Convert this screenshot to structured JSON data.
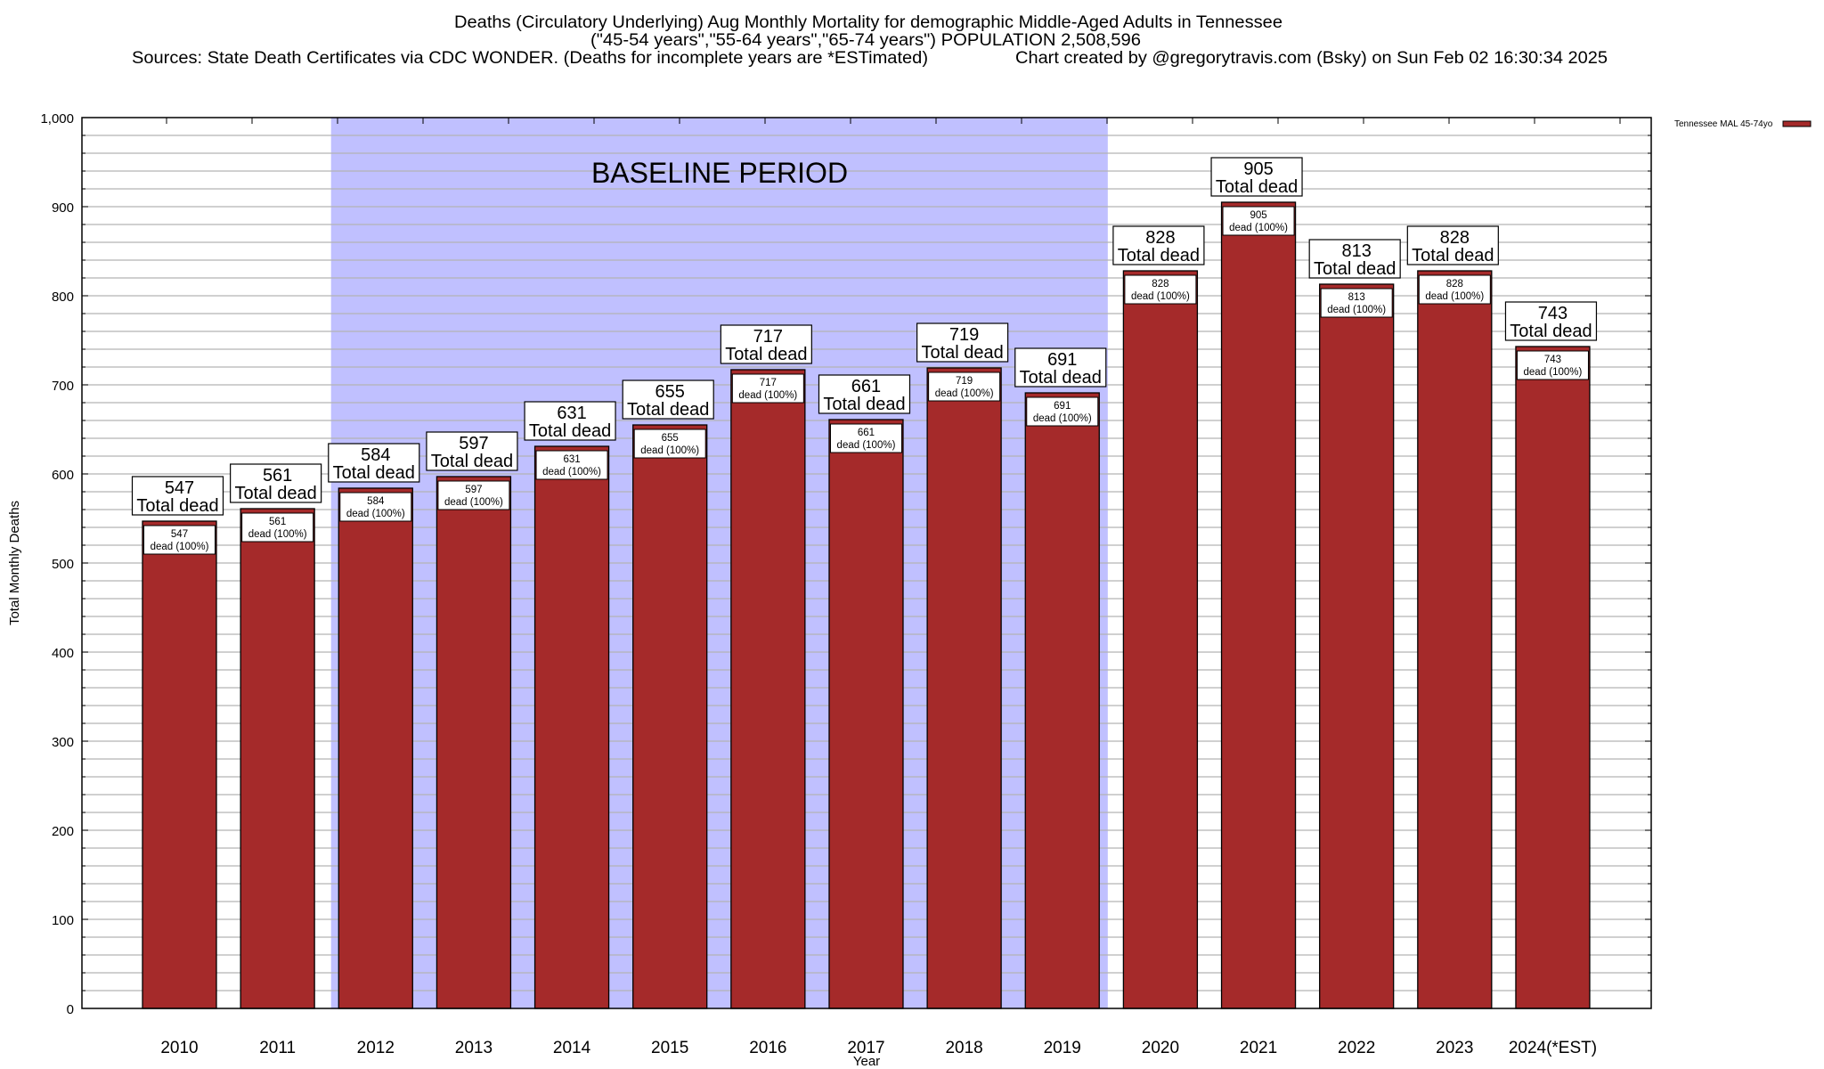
{
  "chart_data": {
    "type": "bar",
    "title_lines": [
      "Deaths (Circulatory Underlying) Aug Monthly Mortality for demographic Middle-Aged Adults in Tennessee",
      "(\"45-54 years\",\"55-64 years\",\"65-74 years\") POPULATION 2,508,596"
    ],
    "sources": "Sources: State Death Certificates via CDC WONDER. (Deaths for incomplete years are *ESTimated)",
    "credit": "Chart created by @gregorytravis.com (Bsky) on Sun Feb 02 16:30:34 2025",
    "xlabel": "Year",
    "ylabel": "Total Monthly Deaths",
    "ylim": [
      0,
      1000
    ],
    "yticks": [
      0,
      100,
      200,
      300,
      400,
      500,
      600,
      700,
      800,
      900,
      1000
    ],
    "ytick_labels": [
      "0",
      "100",
      "200",
      "300",
      "400",
      "500",
      "600",
      "700",
      "800",
      "900",
      "1,000"
    ],
    "minor_grid_step": 20,
    "grid": true,
    "categories": [
      "2010",
      "2011",
      "2012",
      "2013",
      "2014",
      "2015",
      "2016",
      "2017",
      "2018",
      "2019",
      "2020",
      "2021",
      "2022",
      "2023",
      "2024(*EST)"
    ],
    "series": [
      {
        "name": "Tennessee MAL 45-74yo",
        "color": "#a52a2a",
        "values": [
          547,
          561,
          584,
          597,
          631,
          655,
          717,
          661,
          719,
          691,
          828,
          905,
          813,
          828,
          743
        ]
      }
    ],
    "total_label_suffix": "Total dead",
    "inner_label_suffix": "dead (100%)",
    "legend": {
      "position": "top-right",
      "label": "Tennessee MAL 45-74yo"
    },
    "annotation": {
      "text": "BASELINE PERIOD",
      "range_categories": [
        "2012",
        "2019"
      ],
      "color": "#c0c0ff"
    }
  }
}
